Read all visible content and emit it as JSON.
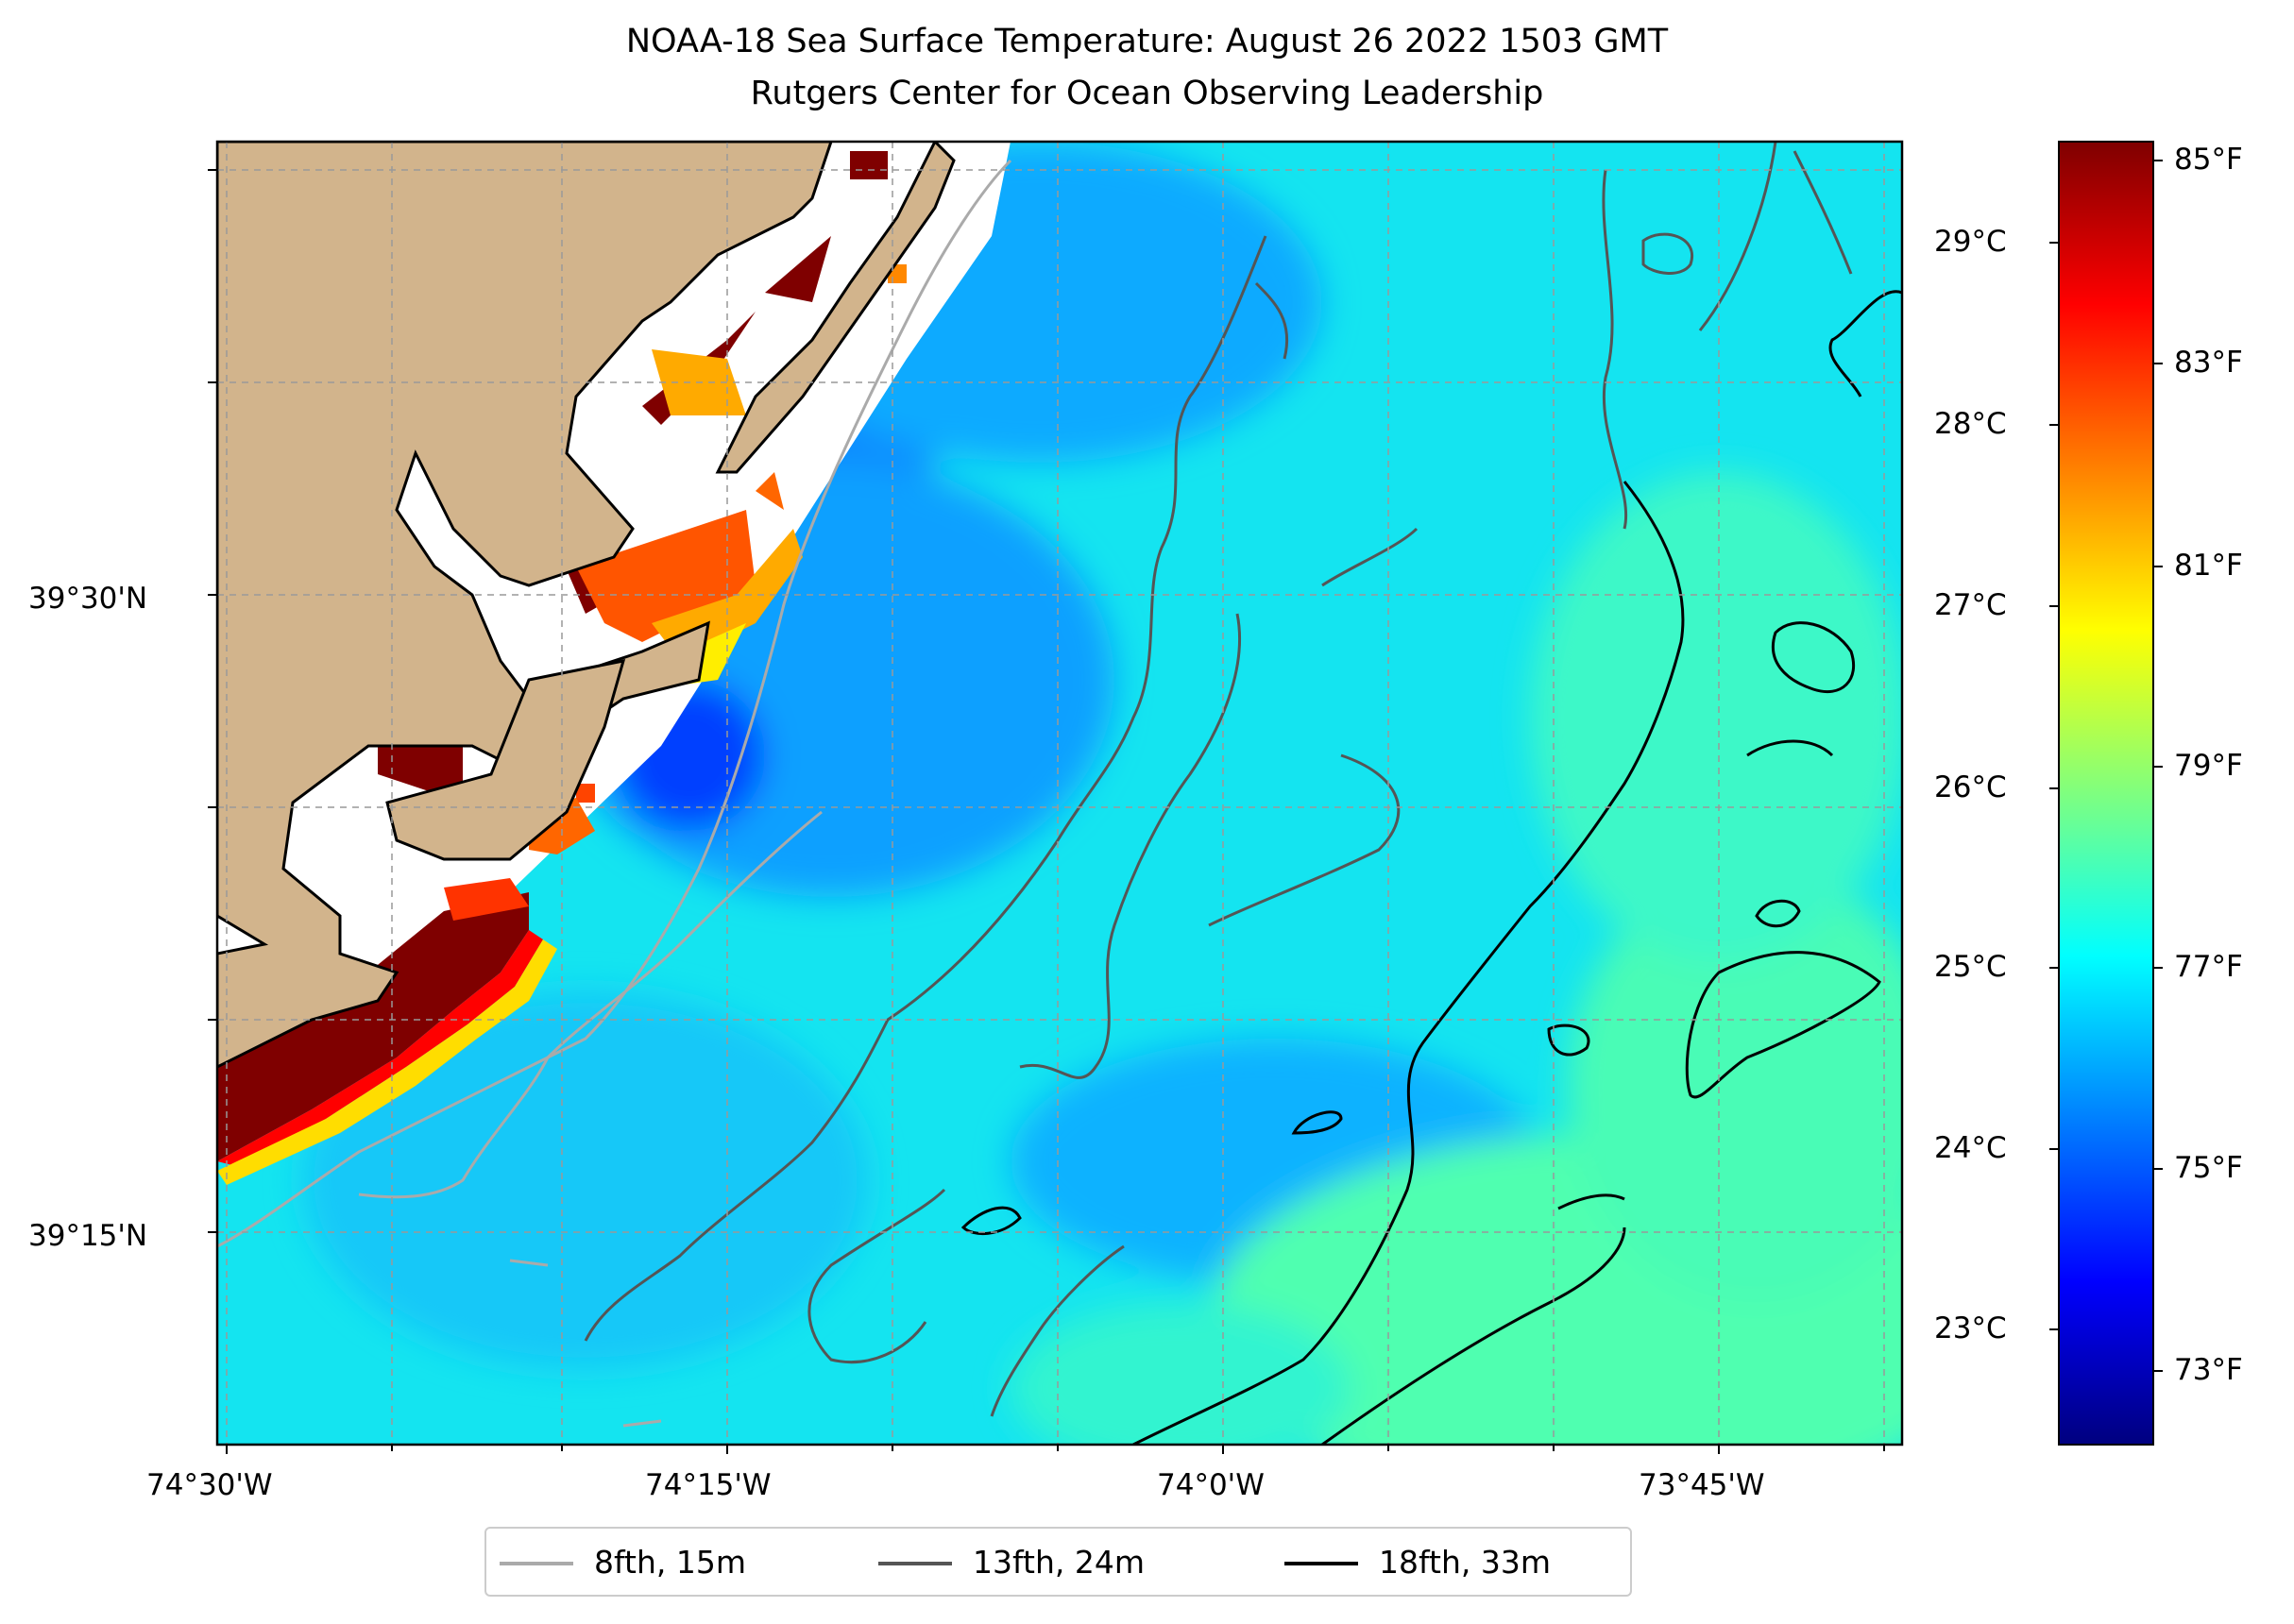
{
  "figure": {
    "title_line1": "NOAA-18 Sea Surface Temperature: August 26 2022 1503 GMT",
    "title_line2": "Rutgers Center for Ocean Observing Leadership"
  },
  "map": {
    "x_ticks": [
      "74°30'W",
      "74°15'W",
      "74°0'W",
      "73°45'W"
    ],
    "y_ticks": [
      "39°30'N",
      "39°15'N"
    ],
    "land_color": "#d2b48c",
    "coastline_color": "#000000",
    "gridlines": true
  },
  "colorbar": {
    "celsius_ticks": [
      "29°C",
      "28°C",
      "27°C",
      "26°C",
      "25°C",
      "24°C",
      "23°C"
    ],
    "fahrenheit_ticks": [
      "85°F",
      "83°F",
      "81°F",
      "79°F",
      "77°F",
      "75°F",
      "73°F"
    ],
    "colormap": "jet",
    "range_f": [
      72.5,
      85.3
    ]
  },
  "legend": {
    "items": [
      {
        "label": "8fth, 15m",
        "color": "#aaaaaa"
      },
      {
        "label": "13fth, 24m",
        "color": "#555555"
      },
      {
        "label": "18fth, 33m",
        "color": "#000000"
      }
    ]
  }
}
